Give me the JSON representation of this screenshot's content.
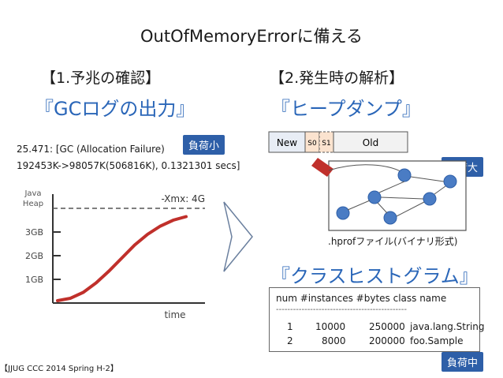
{
  "title": "OutOfMemoryErrorに備える",
  "left": {
    "section_title": "【1.予兆の確認】",
    "heading": "『GCログの出力』",
    "gc_log": [
      "25.471: [GC (Allocation Failure)",
      "192453K->98057K(506816K), 0.1321301 secs]"
    ],
    "badge": "負荷小"
  },
  "chart_data": {
    "type": "line",
    "ylabel": "Java\nHeap",
    "xlabel": "time",
    "yticks": [
      "1GB",
      "2GB",
      "3GB"
    ],
    "limit_label": "-Xmx: 4G",
    "ylim": [
      0,
      4
    ],
    "series": [
      {
        "x": [
          0,
          0.1,
          0.2,
          0.3,
          0.4,
          0.5,
          0.6,
          0.7,
          0.8,
          0.9,
          1.0
        ],
        "values": [
          0.1,
          0.2,
          0.45,
          0.85,
          1.35,
          1.9,
          2.45,
          2.9,
          3.25,
          3.5,
          3.65
        ]
      }
    ],
    "colors": {
      "line": "#c0302b",
      "axis": "#333333",
      "limit": "#555555"
    }
  },
  "right": {
    "section_title": "【2.発生時の解析】",
    "heap_heading": "『ヒープダンプ』",
    "heap_bar": {
      "new": "New",
      "s0": "S0",
      "s1": "S1",
      "old": "Old"
    },
    "badge_high": "負荷大",
    "hprof_label": ".hprofファイル(バイナリ形式)",
    "histogram_heading": "『クラスヒストグラム』",
    "table": {
      "header": "num  #instances  #bytes   class name",
      "divider": "----------------------------------------------",
      "rows": [
        {
          "num": "1",
          "instances": "10000",
          "bytes": "250000",
          "class": "java.lang.String"
        },
        {
          "num": "2",
          "instances": "8000",
          "bytes": "200000",
          "class": "foo.Sample"
        }
      ]
    },
    "badge_mid": "負荷中"
  },
  "footer": "【JJUG CCC 2014 Spring H-2】",
  "colors": {
    "accent_blue": "#2a66b8",
    "badge": "#2e5fa8",
    "red": "#c0302b"
  }
}
